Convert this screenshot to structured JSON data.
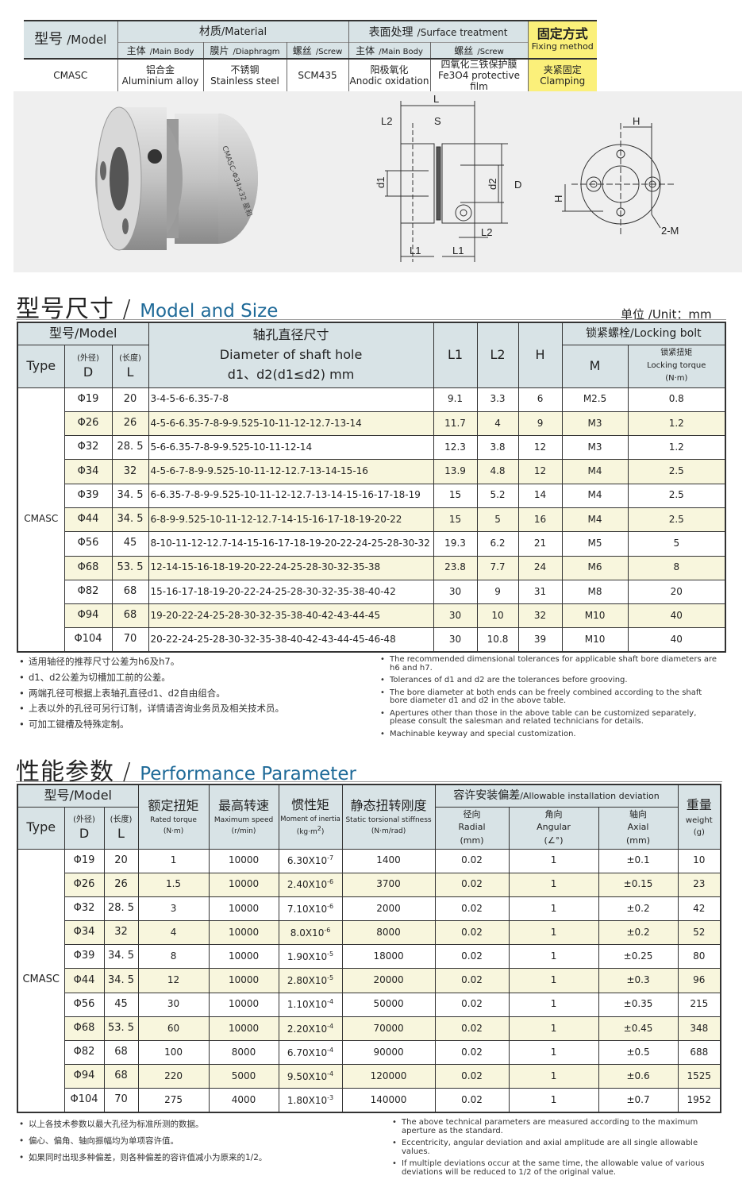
{
  "top_table": {
    "model_cn": "型号",
    "model_en": "/Model",
    "material_cn": "材质",
    "material_en": "/Material",
    "surface_cn": "表面处理",
    "surface_en": "/Surface treatment",
    "fixing_cn": "固定方式",
    "fixing_en": "Fixing method",
    "sub": [
      {
        "cn": "主体",
        "en": "/Main Body"
      },
      {
        "cn": "膜片",
        "en": "/Diaphragm"
      },
      {
        "cn": "螺丝",
        "en": "/Screw"
      },
      {
        "cn": "主体",
        "en": "/Main Body"
      },
      {
        "cn": "螺丝",
        "en": "/Screw"
      }
    ],
    "row": {
      "model": "CMASC",
      "body_cn": "铝合金",
      "body_en": "Aluminium alloy",
      "diaphragm_cn": "不锈钢",
      "diaphragm_en": "Stainless steel",
      "screw": "SCM435",
      "surface_body_cn": "阳极氧化",
      "surface_body_en": "Anodic oxidation",
      "surface_screw_cn": "四氧化三铁保护膜",
      "surface_screw_en": "Fe3O4 protective film",
      "fixing_cn": "夹紧固定",
      "fixing_en": "Clamping"
    },
    "highlight_color": "#fbf07a"
  },
  "product": {
    "engraving": "CMASC-Φ34×32 星和"
  },
  "drawing": {
    "labels": {
      "L": "L",
      "L2": "L2",
      "S": "S",
      "d1": "d1",
      "d2": "d2",
      "D": "D",
      "L1": "L1",
      "H": "H",
      "M": "2-M"
    }
  },
  "size_section": {
    "title_cn": "型号尺寸",
    "slash": "/",
    "title_en": "Model and Size",
    "unit": "单位 /Unit：mm",
    "headers": {
      "model": "型号/Model",
      "type": "Type",
      "d_cn": "(外径)",
      "d": "D",
      "l_cn": "(长度)",
      "l": "L",
      "bore_cn": "轴孔直径尺寸",
      "bore_en": "Diameter of shaft hole",
      "bore_sub": "d1、d2(d1≤d2) mm",
      "L1": "L1",
      "L2": "L2",
      "H": "H",
      "bolt": "锁紧螺栓/Locking bolt",
      "M": "M",
      "torque_cn": "锁紧扭矩",
      "torque_en": "Locking torque",
      "torque_unit": "(N·m)"
    },
    "type": "CMASC",
    "rows": [
      [
        "Φ19",
        "20",
        "3-4-5-6-6.35-7-8",
        "9.1",
        "3.3",
        "6",
        "M2.5",
        "0.8"
      ],
      [
        "Φ26",
        "26",
        "4-5-6-6.35-7-8-9-9.525-10-11-12-12.7-13-14",
        "11.7",
        "4",
        "9",
        "M3",
        "1.2"
      ],
      [
        "Φ32",
        "28. 5",
        "5-6-6.35-7-8-9-9.525-10-11-12-14",
        "12.3",
        "3.8",
        "12",
        "M3",
        "1.2"
      ],
      [
        "Φ34",
        "32",
        "4-5-6-7-8-9-9.525-10-11-12-12.7-13-14-15-16",
        "13.9",
        "4.8",
        "12",
        "M4",
        "2.5"
      ],
      [
        "Φ39",
        "34. 5",
        "6-6.35-7-8-9-9.525-10-11-12-12.7-13-14-15-16-17-18-19",
        "15",
        "5.2",
        "14",
        "M4",
        "2.5"
      ],
      [
        "Φ44",
        "34. 5",
        "6-8-9-9.525-10-11-12-12.7-14-15-16-17-18-19-20-22",
        "15",
        "5",
        "16",
        "M4",
        "2.5"
      ],
      [
        "Φ56",
        "45",
        "8-10-11-12-12.7-14-15-16-17-18-19-20-22-24-25-28-30-32",
        "19.3",
        "6.2",
        "21",
        "M5",
        "5"
      ],
      [
        "Φ68",
        "53. 5",
        "12-14-15-16-18-19-20-22-24-25-28-30-32-35-38",
        "23.8",
        "7.7",
        "24",
        "M6",
        "8"
      ],
      [
        "Φ82",
        "68",
        "15-16-17-18-19-20-22-24-25-28-30-32-35-38-40-42",
        "30",
        "9",
        "31",
        "M8",
        "20"
      ],
      [
        "Φ94",
        "68",
        "19-20-22-24-25-28-30-32-35-38-40-42-43-44-45",
        "30",
        "10",
        "32",
        "M10",
        "40"
      ],
      [
        "Φ104",
        "70",
        "20-22-24-25-28-30-32-35-38-40-42-43-44-45-46-48",
        "30",
        "10.8",
        "39",
        "M10",
        "40"
      ]
    ],
    "notes_cn": [
      "适用轴径的推荐尺寸公差为h6及h7。",
      "d1、d2公差为切槽加工前的公差。",
      "两端孔径可根据上表轴孔直径d1、d2自由组合。",
      "上表以外的孔径可另行订制，详情请咨询业务员及相关技术员。",
      "可加工键槽及特殊定制。"
    ],
    "notes_en": [
      "The recommended dimensional tolerances for applicable shaft bore diameters are h6 and h7.",
      "Tolerances of d1 and d2 are the tolerances before grooving.",
      "The bore diameter at both ends can be freely combined according to the shaft bore diameter d1 and d2 in the above table.",
      "Apertures other than those in the above table can be customized separately, please consult the salesman and related technicians for details.",
      "Machinable keyway and special customization."
    ]
  },
  "perf_section": {
    "title_cn": "性能参数",
    "slash": "/",
    "title_en": "Performance Parameter",
    "headers": {
      "model": "型号/Model",
      "type": "Type",
      "d_cn": "(外径)",
      "d": "D",
      "l_cn": "(长度)",
      "l": "L",
      "torque_cn": "额定扭矩",
      "torque_en": "Rated torque",
      "torque_unit": "(N·m)",
      "speed_cn": "最高转速",
      "speed_en": "Maximum speed",
      "speed_unit": "(r/min)",
      "inertia_cn": "惯性矩",
      "inertia_en": "Moment of inertia",
      "inertia_unit": "(kg·m",
      "inertia_sup": "2",
      "inertia_close": ")",
      "stiff_cn": "静态扭转刚度",
      "stiff_en": "Static torsional stiffness",
      "stiff_unit": "(N·m/rad)",
      "dev": "容许安装偏差",
      "dev_en": "/Allowable installation deviation",
      "radial_cn": "径向",
      "radial_en": "Radial",
      "radial_unit": "(mm)",
      "angular_cn": "角向",
      "angular_en": "Angular",
      "angular_unit": "(∠°)",
      "axial_cn": "轴向",
      "axial_en": "Axial",
      "axial_unit": "(mm)",
      "weight_cn": "重量",
      "weight_en": "weight",
      "weight_unit": "(g)"
    },
    "type": "CMASC",
    "rows": [
      [
        "Φ19",
        "20",
        "1",
        "10000",
        [
          "6.30X10",
          "-7"
        ],
        "1400",
        "0.02",
        "1",
        "±0.1",
        "10"
      ],
      [
        "Φ26",
        "26",
        "1.5",
        "10000",
        [
          "2.40X10",
          "-6"
        ],
        "3700",
        "0.02",
        "1",
        "±0.15",
        "23"
      ],
      [
        "Φ32",
        "28. 5",
        "3",
        "10000",
        [
          "7.10X10",
          "-6"
        ],
        "2000",
        "0.02",
        "1",
        "±0.2",
        "42"
      ],
      [
        "Φ34",
        "32",
        "4",
        "10000",
        [
          "8.0X10",
          "-6"
        ],
        "8000",
        "0.02",
        "1",
        "±0.2",
        "52"
      ],
      [
        "Φ39",
        "34. 5",
        "8",
        "10000",
        [
          "1.90X10",
          "-5"
        ],
        "18000",
        "0.02",
        "1",
        "±0.25",
        "80"
      ],
      [
        "Φ44",
        "34. 5",
        "12",
        "10000",
        [
          "2.80X10",
          "-5"
        ],
        "20000",
        "0.02",
        "1",
        "±0.3",
        "96"
      ],
      [
        "Φ56",
        "45",
        "30",
        "10000",
        [
          "1.10X10",
          "-4"
        ],
        "50000",
        "0.02",
        "1",
        "±0.35",
        "215"
      ],
      [
        "Φ68",
        "53. 5",
        "60",
        "10000",
        [
          "2.20X10",
          "-4"
        ],
        "70000",
        "0.02",
        "1",
        "±0.45",
        "348"
      ],
      [
        "Φ82",
        "68",
        "100",
        "8000",
        [
          "6.70X10",
          "-4"
        ],
        "90000",
        "0.02",
        "1",
        "±0.5",
        "688"
      ],
      [
        "Φ94",
        "68",
        "220",
        "5000",
        [
          "9.50X10",
          "-4"
        ],
        "120000",
        "0.02",
        "1",
        "±0.6",
        "1525"
      ],
      [
        "Φ104",
        "70",
        "275",
        "4000",
        [
          "1.80X10",
          "-3"
        ],
        "140000",
        "0.02",
        "1",
        "±0.7",
        "1952"
      ]
    ],
    "notes_cn": [
      "以上各技术参数以最大孔径为标准所测的数据。",
      "偏心、偏角、轴向振幅均为单项容许值。",
      "如果同时出现多种偏差，则各种偏差的容许值减小为原来的1/2。"
    ],
    "notes_en": [
      "The above technical parameters are measured according to the maximum aperture as the standard.",
      "Eccentricity,  angular deviation and axial amplitude are all single allowable values.",
      "If multiple deviations occur at the same time, the allowable value of various deviations will be reduced to 1/2 of the original value."
    ]
  },
  "colors": {
    "header_bg": "#d8e3e6",
    "alt_row": "#f8f6dd",
    "title_en": "#1f6a98"
  }
}
